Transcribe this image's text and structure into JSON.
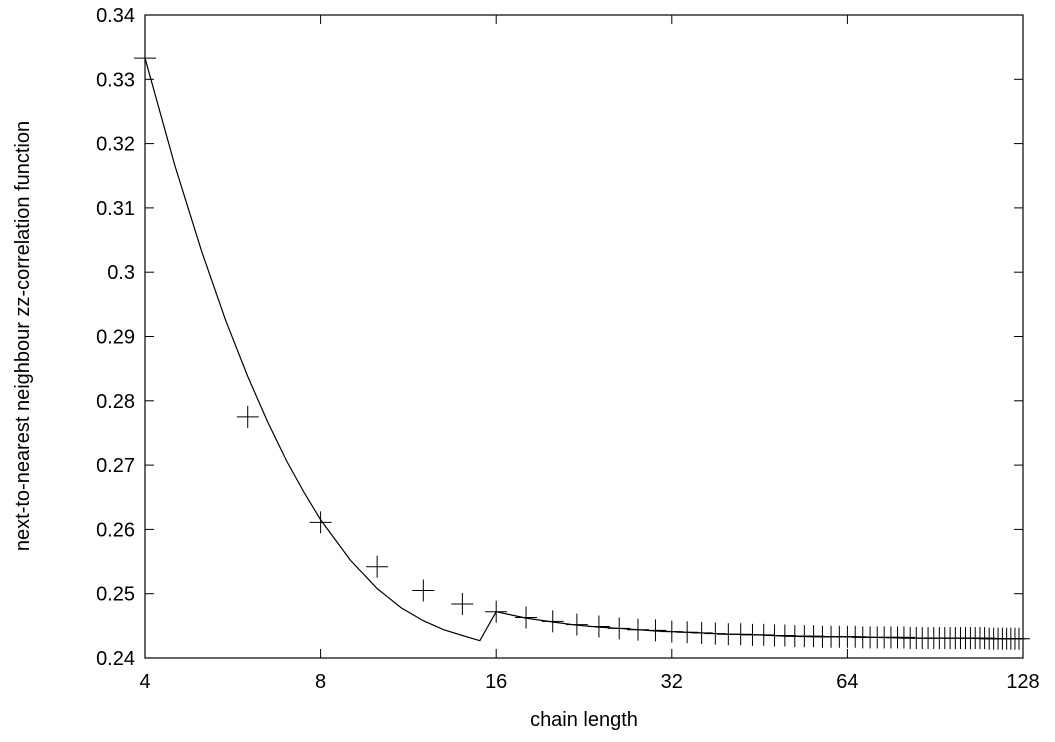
{
  "chart_data": {
    "type": "scatter",
    "title": "",
    "xlabel": "chain length",
    "ylabel": "next-to-nearest neighbour zz-correlation function",
    "x_scale": "log2",
    "xlim": [
      4,
      128
    ],
    "ylim": [
      0.24,
      0.34
    ],
    "x_ticks": [
      4,
      8,
      16,
      32,
      64,
      128
    ],
    "x_tick_labels": [
      "4",
      "8",
      "16",
      "32",
      "64",
      "128"
    ],
    "y_ticks": [
      0.24,
      0.25,
      0.26,
      0.27,
      0.28,
      0.29,
      0.3,
      0.31,
      0.32,
      0.33,
      0.34
    ],
    "y_tick_labels": [
      "0.24",
      "0.25",
      "0.26",
      "0.27",
      "0.28",
      "0.29",
      "0.3",
      "0.31",
      "0.32",
      "0.33",
      "0.34"
    ],
    "grid": false,
    "legend": "none",
    "series": [
      {
        "kind": "points",
        "marker": "plus",
        "x": [
          4,
          6,
          8,
          10,
          12,
          14,
          16,
          18,
          20,
          22,
          24,
          26,
          28,
          30,
          32,
          34,
          36,
          38,
          40,
          42,
          44,
          46,
          48,
          50,
          52,
          54,
          56,
          58,
          60,
          62,
          64,
          66,
          68,
          70,
          72,
          74,
          76,
          78,
          80,
          82,
          84,
          86,
          88,
          90,
          92,
          94,
          96,
          98,
          100,
          102,
          104,
          106,
          108,
          110,
          112,
          114,
          116,
          118,
          120,
          122,
          124,
          126
        ],
        "y": [
          0.3333,
          0.2775,
          0.2611,
          0.2542,
          0.2505,
          0.2484,
          0.2472,
          0.2463,
          0.2457,
          0.2452,
          0.2449,
          0.2446,
          0.2444,
          0.2443,
          0.2441,
          0.244,
          0.2439,
          0.2438,
          0.2437,
          0.2437,
          0.2436,
          0.2436,
          0.2435,
          0.2435,
          0.2434,
          0.2434,
          0.2434,
          0.2433,
          0.2433,
          0.2433,
          0.2433,
          0.2433,
          0.2432,
          0.2432,
          0.2432,
          0.2432,
          0.2432,
          0.2432,
          0.2432,
          0.2431,
          0.2431,
          0.2431,
          0.2431,
          0.2431,
          0.2431,
          0.2431,
          0.2431,
          0.2431,
          0.2431,
          0.2431,
          0.2431,
          0.2431,
          0.2431,
          0.2431,
          0.243,
          0.243,
          0.243,
          0.243,
          0.243,
          0.243,
          0.243,
          0.243
        ]
      },
      {
        "kind": "line",
        "x": [
          4,
          4.5,
          5,
          5.5,
          6,
          6.5,
          7,
          7.5,
          8,
          9,
          10,
          11,
          12,
          13,
          14,
          15,
          16,
          18,
          20,
          22,
          24,
          26,
          28,
          30,
          32,
          36,
          40,
          45,
          50,
          56,
          64,
          72,
          80,
          90,
          100,
          110,
          120,
          128
        ],
        "y": [
          0.3333,
          0.3166,
          0.3033,
          0.2925,
          0.2838,
          0.2766,
          0.2706,
          0.2657,
          0.2615,
          0.2552,
          0.2508,
          0.2478,
          0.2458,
          0.2444,
          0.2435,
          0.2427,
          0.2472,
          0.2462,
          0.2456,
          0.2451,
          0.2448,
          0.2446,
          0.2444,
          0.2442,
          0.2441,
          0.2439,
          0.2437,
          0.2436,
          0.2434,
          0.2433,
          0.2433,
          0.2432,
          0.2431,
          0.2431,
          0.2431,
          0.243,
          0.243,
          0.243
        ]
      }
    ]
  }
}
